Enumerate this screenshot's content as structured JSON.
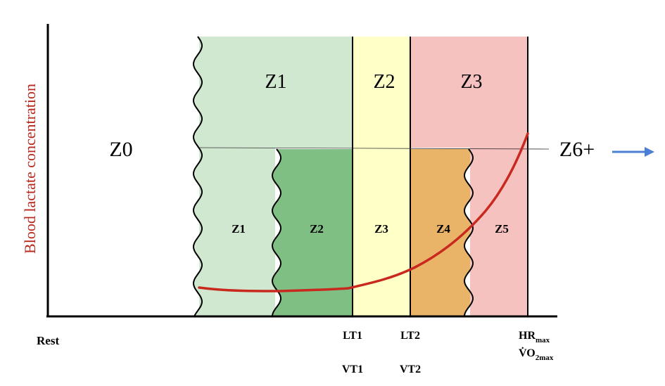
{
  "y_axis_label": "Blood lactate concentration",
  "zones_3": [
    {
      "label": "Z1",
      "color": "#cfe8cf"
    },
    {
      "label": "Z2",
      "color": "#ffffc8"
    },
    {
      "label": "Z3",
      "color": "#f6c2c0"
    }
  ],
  "zones_5": [
    {
      "label": "Z1",
      "color": "#cfe8cf"
    },
    {
      "label": "Z2",
      "color": "#7fbf84"
    },
    {
      "label": "Z3",
      "color": "#ffffc8"
    },
    {
      "label": "Z4",
      "color": "#e9b468"
    },
    {
      "label": "Z5",
      "color": "#f6c2c0"
    }
  ],
  "outer_zones": {
    "left": "Z0",
    "right": "Z6+"
  },
  "x_markers": {
    "rest": "Rest",
    "lt1": "LT1",
    "lt2": "LT2",
    "vt1": "VT1",
    "vt2": "VT2",
    "hr": "HR",
    "hr_sub": "max",
    "vo2": "V̇O",
    "vo2_sub": "2max"
  },
  "colors": {
    "curve": "#c8281e",
    "ylabel": "#b8281e",
    "arrow": "#4a7fd4",
    "axis": "#000000"
  }
}
